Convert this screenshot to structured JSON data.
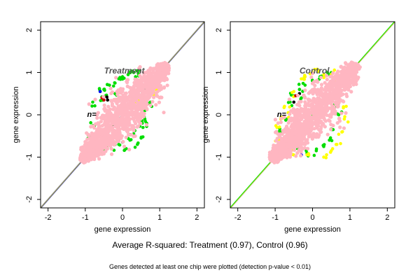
{
  "chart_data": [
    {
      "type": "scatter",
      "title": "Treatment",
      "n_label": "n=",
      "xlabel": "gene expression",
      "ylabel": "gene expression",
      "xlim": [
        -2.2,
        2.2
      ],
      "ylim": [
        -2.2,
        2.2
      ],
      "xticks": [
        -2,
        -1,
        0,
        1,
        2
      ],
      "yticks": [
        -2,
        -1,
        0,
        1,
        2
      ],
      "grid": false,
      "diagonal_colors": [
        "#0000cc",
        "#cccc00",
        "#888888"
      ],
      "cloud": {
        "range": [
          -1.1,
          1.2
        ],
        "width": 0.42
      },
      "series": [
        {
          "color": "#00dd00",
          "spread": 0.5,
          "points": [
            [
              -0.6,
              0.55
            ],
            [
              -0.5,
              0.6
            ],
            [
              -0.45,
              0.45
            ],
            [
              -0.35,
              0.7
            ],
            [
              -0.2,
              0.75
            ],
            [
              -0.1,
              0.85
            ],
            [
              0.0,
              0.9
            ],
            [
              0.15,
              0.95
            ],
            [
              0.3,
              1.0
            ],
            [
              0.45,
              1.05
            ],
            [
              -0.8,
              0.3
            ],
            [
              -0.55,
              0.35
            ],
            [
              0.55,
              -0.3
            ],
            [
              0.5,
              -0.55
            ],
            [
              0.4,
              -0.7
            ],
            [
              0.3,
              -0.45
            ],
            [
              0.2,
              -0.6
            ],
            [
              0.1,
              -0.8
            ],
            [
              -0.1,
              -0.7
            ],
            [
              -0.3,
              -0.8
            ],
            [
              -0.5,
              -0.85
            ],
            [
              -0.65,
              -0.95
            ],
            [
              0.6,
              0.1
            ],
            [
              0.6,
              -0.1
            ],
            [
              0.75,
              0.3
            ],
            [
              -0.9,
              -0.5
            ],
            [
              -0.75,
              -0.25
            ],
            [
              0.35,
              0.9
            ],
            [
              -0.2,
              0.5
            ],
            [
              0.65,
              -0.2
            ]
          ]
        },
        {
          "color": "#ffff00",
          "spread": 0.6,
          "points": [
            [
              0.85,
              0.45
            ],
            [
              0.9,
              0.6
            ],
            [
              0.65,
              0.8
            ],
            [
              0.45,
              0.35
            ],
            [
              0.35,
              0.3
            ],
            [
              -0.3,
              -0.5
            ],
            [
              0.8,
              0.5
            ]
          ]
        },
        {
          "color": "#0000ff",
          "spread": 0,
          "points": [
            [
              -0.6,
              0.55
            ],
            [
              -1.05,
              -0.95
            ]
          ]
        },
        {
          "color": "#cc0000",
          "spread": 0,
          "points": [
            [
              -0.55,
              0.4
            ],
            [
              -0.5,
              0.35
            ]
          ]
        },
        {
          "color": "#000000",
          "spread": 0,
          "points": [
            [
              -0.4,
              0.35
            ],
            [
              -0.42,
              0.42
            ]
          ]
        },
        {
          "color": "#aaaaaa",
          "spread": 0,
          "points": [
            [
              0.0,
              -0.65
            ],
            [
              -0.1,
              -0.6
            ]
          ]
        }
      ]
    },
    {
      "type": "scatter",
      "title": "Control",
      "n_label": "n=",
      "xlabel": "gene expression",
      "ylabel": "gene expression",
      "xlim": [
        -2.2,
        2.2
      ],
      "ylim": [
        -2.2,
        2.2
      ],
      "xticks": [
        -2,
        -1,
        0,
        1,
        2
      ],
      "yticks": [
        -2,
        -1,
        0,
        1,
        2
      ],
      "grid": false,
      "diagonal_colors": [
        "#888888",
        "#ffff00",
        "#00dd00"
      ],
      "cloud": {
        "range": [
          -1.1,
          1.2
        ],
        "width": 0.42
      },
      "series": [
        {
          "color": "#00dd00",
          "spread": 0.5,
          "points": [
            [
              -0.6,
              0.3
            ],
            [
              -0.5,
              0.45
            ],
            [
              -0.35,
              0.6
            ],
            [
              -0.2,
              0.7
            ],
            [
              0.0,
              0.8
            ],
            [
              0.2,
              0.9
            ],
            [
              0.4,
              1.0
            ],
            [
              0.55,
              -0.35
            ],
            [
              0.45,
              -0.6
            ],
            [
              0.3,
              -0.75
            ],
            [
              0.1,
              -0.85
            ],
            [
              -0.15,
              -0.9
            ],
            [
              -0.4,
              -0.8
            ],
            [
              -0.7,
              -0.7
            ],
            [
              -0.85,
              -0.4
            ],
            [
              -0.7,
              -0.1
            ],
            [
              0.7,
              0.0
            ],
            [
              0.65,
              0.2
            ],
            [
              -0.3,
              0.4
            ]
          ]
        },
        {
          "color": "#ffff00",
          "spread": 0.7,
          "points": [
            [
              -0.75,
              0.2
            ],
            [
              -0.65,
              0.05
            ],
            [
              -0.85,
              -0.1
            ],
            [
              -0.5,
              0.55
            ],
            [
              -0.3,
              0.85
            ],
            [
              0.0,
              1.0
            ],
            [
              0.15,
              1.05
            ],
            [
              0.3,
              0.95
            ],
            [
              0.55,
              1.0
            ],
            [
              0.7,
              0.85
            ],
            [
              0.85,
              -0.1
            ],
            [
              0.8,
              -0.4
            ],
            [
              0.65,
              -0.7
            ],
            [
              0.5,
              -0.85
            ],
            [
              0.3,
              -1.0
            ],
            [
              -0.1,
              -0.95
            ],
            [
              -0.5,
              -0.95
            ],
            [
              -0.9,
              -0.6
            ],
            [
              -0.95,
              -0.3
            ],
            [
              0.9,
              0.2
            ],
            [
              0.6,
              0.75
            ],
            [
              -0.2,
              0.9
            ]
          ]
        },
        {
          "color": "#0000ff",
          "spread": 0,
          "points": [
            [
              -0.3,
              -0.95
            ]
          ]
        },
        {
          "color": "#cc0000",
          "spread": 0,
          "points": [
            [
              -0.45,
              0.45
            ]
          ]
        },
        {
          "color": "#000000",
          "spread": 0,
          "points": [
            [
              -0.35,
              0.5
            ],
            [
              -0.5,
              0.3
            ]
          ]
        }
      ]
    }
  ],
  "captions": {
    "main": "Average R-squared: Treatment (0.97), Control (0.96)",
    "sub": "Genes detected at least one chip were plotted (detection p-value < 0.01)"
  },
  "colors": {
    "cloud": "#ffb6c1",
    "axis": "#000000",
    "background": "#ffffff"
  }
}
